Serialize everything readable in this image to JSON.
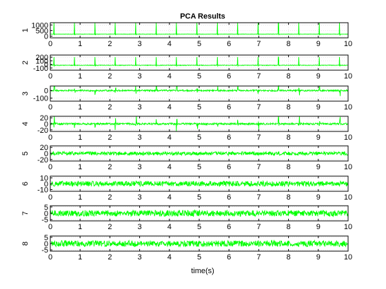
{
  "chart_data": {
    "type": "line",
    "title": "PCA Results",
    "xlabel": "time(s)",
    "xlim": [
      0,
      10
    ],
    "x_ticks": [
      "0",
      "1",
      "2",
      "3",
      "4",
      "5",
      "6",
      "7",
      "8",
      "9",
      "10"
    ],
    "line_color": "#00ff00",
    "grid": true,
    "grid_color": "#c8c8c8",
    "panels": [
      {
        "ylabel": "1",
        "ylim": [
          -150,
          1200
        ],
        "y_ticks": [
          {
            "v": 1000,
            "t": "1000"
          },
          {
            "v": 500,
            "t": "500"
          },
          {
            "v": 0,
            "t": "0"
          }
        ],
        "pattern": "spikes",
        "baseline": 180,
        "noise": 15,
        "spike": 1050,
        "period": 0.685,
        "phase": 0.12
      },
      {
        "ylabel": "2",
        "ylim": [
          -160,
          260
        ],
        "y_ticks": [
          {
            "v": 200,
            "t": "200"
          },
          {
            "v": 100,
            "t": "100"
          },
          {
            "v": 0,
            "t": "0"
          },
          {
            "v": -100,
            "t": "-100"
          }
        ],
        "pattern": "spikes",
        "baseline": -25,
        "noise": 8,
        "spike": 230,
        "period": 0.685,
        "phase": 0.12
      },
      {
        "ylabel": "3",
        "ylim": [
          -140,
          60
        ],
        "y_ticks": [
          {
            "v": 0,
            "t": "0"
          },
          {
            "v": -100,
            "t": "-100"
          }
        ],
        "pattern": "bursty",
        "baseline": 0,
        "noise": 10,
        "spike": 40,
        "period": 0.685,
        "phase": 0.12
      },
      {
        "ylabel": "4",
        "ylim": [
          -25,
          25
        ],
        "y_ticks": [
          {
            "v": 20,
            "t": "20"
          },
          {
            "v": 0,
            "t": "0"
          },
          {
            "v": -20,
            "t": "-20"
          }
        ],
        "pattern": "bursty",
        "baseline": 0,
        "noise": 3,
        "spike": 14,
        "period": 0.685,
        "phase": 0.12
      },
      {
        "ylabel": "5",
        "ylim": [
          -25,
          25
        ],
        "y_ticks": [
          {
            "v": 20,
            "t": "20"
          },
          {
            "v": 0,
            "t": "0"
          },
          {
            "v": -20,
            "t": "-20"
          }
        ],
        "pattern": "noise",
        "baseline": 0,
        "noise": 6,
        "spike": 0,
        "period": 0.685,
        "phase": 0.12
      },
      {
        "ylabel": "6",
        "ylim": [
          -13,
          13
        ],
        "y_ticks": [
          {
            "v": 10,
            "t": "10"
          },
          {
            "v": 0,
            "t": "0"
          },
          {
            "v": -10,
            "t": "-10"
          }
        ],
        "pattern": "noise",
        "baseline": 0,
        "noise": 4.5,
        "spike": 0,
        "period": 0.685,
        "phase": 0.12
      },
      {
        "ylabel": "7",
        "ylim": [
          -6,
          6
        ],
        "y_ticks": [
          {
            "v": 5,
            "t": "5"
          },
          {
            "v": 0,
            "t": "0"
          },
          {
            "v": -5,
            "t": "-5"
          }
        ],
        "pattern": "noise",
        "baseline": 0,
        "noise": 2.4,
        "spike": 0,
        "period": 0.685,
        "phase": 0.12
      },
      {
        "ylabel": "8",
        "ylim": [
          -6,
          6
        ],
        "y_ticks": [
          {
            "v": 5,
            "t": "5"
          },
          {
            "v": 0,
            "t": "0"
          },
          {
            "v": -5,
            "t": "-5"
          }
        ],
        "pattern": "noise",
        "baseline": 0,
        "noise": 2.4,
        "spike": 0,
        "period": 0.685,
        "phase": 0.12
      }
    ]
  }
}
